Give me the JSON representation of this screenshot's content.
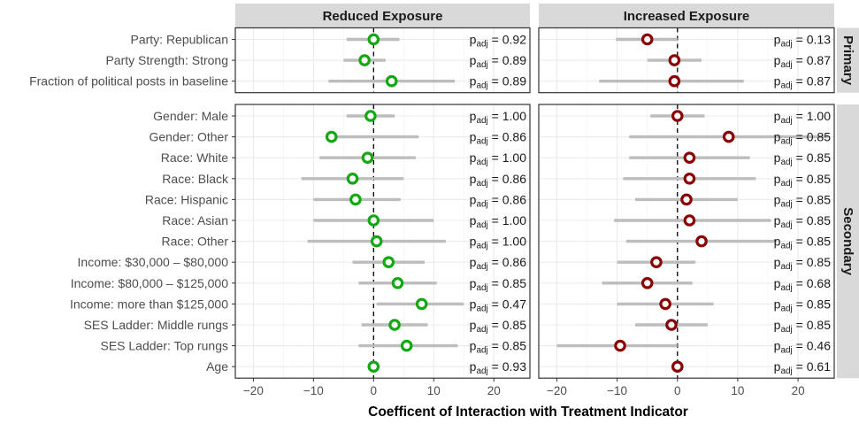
{
  "chart_data": {
    "type": "scatter",
    "subtype": "coefficient-plot-with-intervals",
    "xlabel": "Coefficent of Interaction with Treatment Indicator",
    "xlim": [
      -23,
      26
    ],
    "xticks": [
      -20,
      -10,
      0,
      10,
      20
    ],
    "reference_line": 0,
    "grid": true,
    "panels": [
      {
        "key": "reduced",
        "title": "Reduced Exposure",
        "point_color": "#11a811"
      },
      {
        "key": "increased",
        "title": "Increased Exposure",
        "point_color": "#8b0000"
      }
    ],
    "p_label": {
      "base": "p",
      "sub": "adj",
      "sep": " = "
    },
    "groups": [
      {
        "name": "Primary",
        "rows": [
          {
            "label": "Party: Republican",
            "reduced": {
              "est": 0.0,
              "lo": -4.5,
              "hi": 4.3,
              "p": "0.92"
            },
            "increased": {
              "est": -5.0,
              "lo": -10.2,
              "hi": 0.0,
              "p": "0.13"
            }
          },
          {
            "label": "Party Strength: Strong",
            "reduced": {
              "est": -1.5,
              "lo": -5.0,
              "hi": 2.0,
              "p": "0.89"
            },
            "increased": {
              "est": -0.5,
              "lo": -5.0,
              "hi": 4.0,
              "p": "0.87"
            }
          },
          {
            "label": "Fraction of political posts in baseline",
            "reduced": {
              "est": 3.0,
              "lo": -7.5,
              "hi": 13.5,
              "p": "0.89"
            },
            "increased": {
              "est": -0.5,
              "lo": -13.0,
              "hi": 11.0,
              "p": "0.87"
            }
          }
        ]
      },
      {
        "name": "Secondary",
        "rows": [
          {
            "label": "Gender: Male",
            "reduced": {
              "est": -0.5,
              "lo": -4.5,
              "hi": 3.5,
              "p": "1.00"
            },
            "increased": {
              "est": 0.0,
              "lo": -4.5,
              "hi": 4.5,
              "p": "1.00"
            }
          },
          {
            "label": "Gender: Other",
            "reduced": {
              "est": -7.0,
              "lo": -7.0,
              "hi": 7.5,
              "p": "0.86"
            },
            "increased": {
              "est": 8.5,
              "lo": -8.0,
              "hi": 25.0,
              "p": "0.85"
            }
          },
          {
            "label": "Race: White",
            "reduced": {
              "est": -1.0,
              "lo": -9.0,
              "hi": 7.0,
              "p": "1.00"
            },
            "increased": {
              "est": 2.0,
              "lo": -8.0,
              "hi": 12.0,
              "p": "0.85"
            }
          },
          {
            "label": "Race: Black",
            "reduced": {
              "est": -3.5,
              "lo": -12.0,
              "hi": 5.0,
              "p": "0.86"
            },
            "increased": {
              "est": 2.0,
              "lo": -9.0,
              "hi": 13.0,
              "p": "0.85"
            }
          },
          {
            "label": "Race: Hispanic",
            "reduced": {
              "est": -3.0,
              "lo": -10.0,
              "hi": 4.5,
              "p": "0.86"
            },
            "increased": {
              "est": 1.5,
              "lo": -7.0,
              "hi": 10.0,
              "p": "0.85"
            }
          },
          {
            "label": "Race: Asian",
            "reduced": {
              "est": 0.0,
              "lo": -10.0,
              "hi": 10.0,
              "p": "1.00"
            },
            "increased": {
              "est": 2.0,
              "lo": -10.5,
              "hi": 15.5,
              "p": "0.85"
            }
          },
          {
            "label": "Race: Other",
            "reduced": {
              "est": 0.5,
              "lo": -11.0,
              "hi": 12.0,
              "p": "1.00"
            },
            "increased": {
              "est": 4.0,
              "lo": -8.5,
              "hi": 16.5,
              "p": "0.85"
            }
          },
          {
            "label": "Income: $30,000 – $80,000",
            "reduced": {
              "est": 2.5,
              "lo": -3.5,
              "hi": 8.5,
              "p": "0.86"
            },
            "increased": {
              "est": -3.5,
              "lo": -10.0,
              "hi": 3.0,
              "p": "0.85"
            }
          },
          {
            "label": "Income: $80,000 – $125,000",
            "reduced": {
              "est": 4.0,
              "lo": -2.5,
              "hi": 10.5,
              "p": "0.85"
            },
            "increased": {
              "est": -5.0,
              "lo": -12.5,
              "hi": 2.5,
              "p": "0.68"
            }
          },
          {
            "label": "Income: more than $125,000",
            "reduced": {
              "est": 8.0,
              "lo": 0.5,
              "hi": 15.0,
              "p": "0.47"
            },
            "increased": {
              "est": -2.0,
              "lo": -10.0,
              "hi": 6.0,
              "p": "0.85"
            }
          },
          {
            "label": "SES Ladder: Middle rungs",
            "reduced": {
              "est": 3.5,
              "lo": -2.0,
              "hi": 9.0,
              "p": "0.85"
            },
            "increased": {
              "est": -1.0,
              "lo": -7.0,
              "hi": 5.0,
              "p": "0.85"
            }
          },
          {
            "label": "SES Ladder: Top rungs",
            "reduced": {
              "est": 5.5,
              "lo": -2.5,
              "hi": 14.0,
              "p": "0.85"
            },
            "increased": {
              "est": -9.5,
              "lo": -20.0,
              "hi": 0.0,
              "p": "0.46"
            }
          },
          {
            "label": "Age",
            "reduced": {
              "est": 0.0,
              "lo": -0.5,
              "hi": 0.5,
              "p": "0.93"
            },
            "increased": {
              "est": 0.0,
              "lo": -0.5,
              "hi": 0.5,
              "p": "0.61"
            }
          }
        ]
      }
    ]
  }
}
